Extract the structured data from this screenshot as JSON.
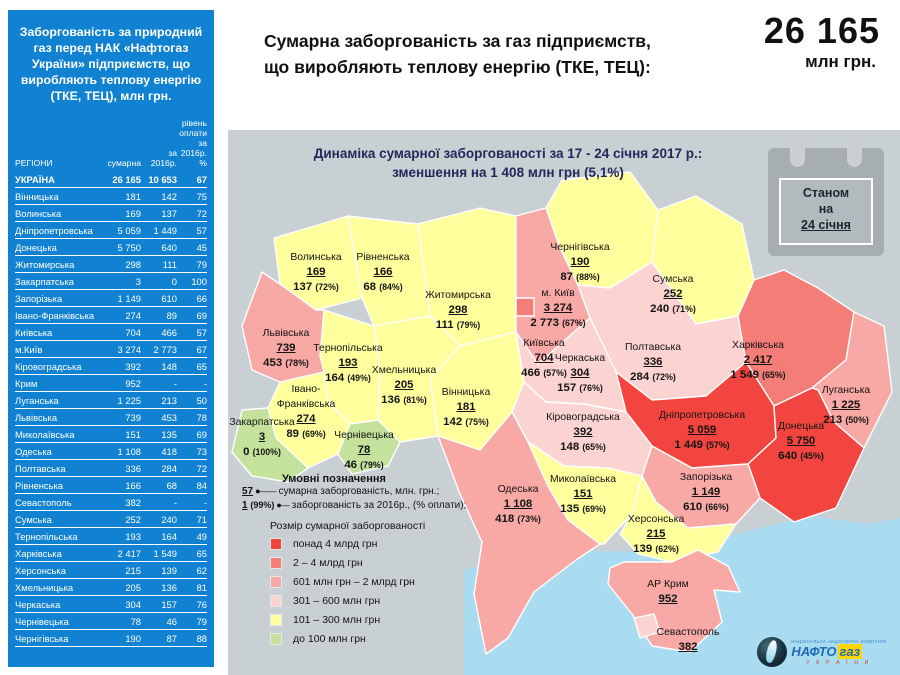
{
  "sidebar": {
    "bg": "#1182d2",
    "title": "Заборгованість за природний газ перед НАК «Нафтогаз України» підприємств, що виробляють теплову енергію (ТКЕ, ТЕЦ), млн грн.",
    "table": {
      "columns": [
        "РЕГІОНИ",
        "сумарна",
        "за 2016р.",
        "рівень оплати за 2016р. %"
      ],
      "rows": [
        [
          "УКРАЇНА",
          "26 165",
          "10 653",
          "67"
        ],
        [
          "Вінницька",
          "181",
          "142",
          "75"
        ],
        [
          "Волинська",
          "169",
          "137",
          "72"
        ],
        [
          "Дніпропетровська",
          "5 059",
          "1 449",
          "57"
        ],
        [
          "Донецька",
          "5 750",
          "640",
          "45"
        ],
        [
          "Житомирська",
          "298",
          "111",
          "79"
        ],
        [
          "Закарпатська",
          "3",
          "0",
          "100"
        ],
        [
          "Запорізька",
          "1 149",
          "610",
          "66"
        ],
        [
          "Івано-Франківська",
          "274",
          "89",
          "69"
        ],
        [
          "Київська",
          "704",
          "466",
          "57"
        ],
        [
          "м.Київ",
          "3 274",
          "2 773",
          "67"
        ],
        [
          "Кіровоградська",
          "392",
          "148",
          "65"
        ],
        [
          "Крим",
          "952",
          "-",
          "-"
        ],
        [
          "Луганська",
          "1 225",
          "213",
          "50"
        ],
        [
          "Львівська",
          "739",
          "453",
          "78"
        ],
        [
          "Миколаївська",
          "151",
          "135",
          "69"
        ],
        [
          "Одеська",
          "1 108",
          "418",
          "73"
        ],
        [
          "Полтавська",
          "336",
          "284",
          "72"
        ],
        [
          "Рівненська",
          "166",
          "68",
          "84"
        ],
        [
          "Севастополь",
          "382",
          "-",
          "-"
        ],
        [
          "Сумська",
          "252",
          "240",
          "71"
        ],
        [
          "Тернопільська",
          "193",
          "164",
          "49"
        ],
        [
          "Харківська",
          "2 417",
          "1 549",
          "65"
        ],
        [
          "Херсонська",
          "215",
          "139",
          "62"
        ],
        [
          "Хмельницька",
          "205",
          "136",
          "81"
        ],
        [
          "Черкаська",
          "304",
          "157",
          "76"
        ],
        [
          "Чернівецька",
          "78",
          "46",
          "79"
        ],
        [
          "Чернігівська",
          "190",
          "87",
          "88"
        ]
      ]
    }
  },
  "header": {
    "title_line1": "Сумарна заборгованість за газ підприємств,",
    "title_line2": "що виробляють теплову енергію (ТКЕ, ТЕЦ):",
    "total_value": "26 165",
    "total_unit": "млн грн."
  },
  "map": {
    "title_line1": "Динаміка сумарної заборгованості за 17 - 24 січня 2017 р.:",
    "title_line2": "зменшення на 1 408 млн грн (5,1%)",
    "calendar": {
      "line1": "Станом",
      "line2": "на",
      "date": "24 січня"
    },
    "land_color": "#c9d0d4",
    "sea_color": "#a9dcf1",
    "category_colors": {
      "red": "#f2453f",
      "medium": "#f57d78",
      "pink": "#f8a8a5",
      "lightpink": "#fbd3d1",
      "yellow": "#ffff9e",
      "green": "#c4e29c"
    },
    "regions": {
      "volynska": {
        "name": "Волинська",
        "total": "169",
        "y2016": "137",
        "pct": "(72%)",
        "category": "yellow"
      },
      "rivnenska": {
        "name": "Рівненська",
        "total": "166",
        "y2016": "68",
        "pct": "(84%)",
        "category": "yellow"
      },
      "zhytomyrska": {
        "name": "Житомирська",
        "total": "298",
        "y2016": "111",
        "pct": "(79%)",
        "category": "yellow"
      },
      "chernihivska": {
        "name": "Чернігівська",
        "total": "190",
        "y2016": "87",
        "pct": "(88%)",
        "category": "yellow"
      },
      "sumska": {
        "name": "Сумська",
        "total": "252",
        "y2016": "240",
        "pct": "(71%)",
        "category": "yellow"
      },
      "kyivska": {
        "name": "Київська",
        "total": "704",
        "y2016": "466",
        "pct": "(57%)",
        "category": "pink"
      },
      "kyiv_city": {
        "name": "м. Київ",
        "total": "3 274",
        "y2016": "2 773",
        "pct": "(67%)",
        "category": "medium"
      },
      "cherkaska": {
        "name": "Черкаська",
        "total": "304",
        "y2016": "157",
        "pct": "(76%)",
        "category": "lightpink"
      },
      "poltavska": {
        "name": "Полтавська",
        "total": "336",
        "y2016": "284",
        "pct": "(72%)",
        "category": "lightpink"
      },
      "kharkivska": {
        "name": "Харківська",
        "total": "2 417",
        "y2016": "1 549",
        "pct": "(65%)",
        "category": "medium"
      },
      "luhanska": {
        "name": "Луганська",
        "total": "1 225",
        "y2016": "213",
        "pct": "(50%)",
        "category": "pink"
      },
      "dnipropetrovska": {
        "name": "Дніпропетровська",
        "total": "5 059",
        "y2016": "1 449",
        "pct": "(57%)",
        "category": "red"
      },
      "donetska": {
        "name": "Донецька",
        "total": "5 750",
        "y2016": "640",
        "pct": "(45%)",
        "category": "red"
      },
      "zaporizka": {
        "name": "Запорізька",
        "total": "1 149",
        "y2016": "610",
        "pct": "(66%)",
        "category": "pink"
      },
      "kirovohradska": {
        "name": "Кіровоградська",
        "total": "392",
        "y2016": "148",
        "pct": "(65%)",
        "category": "lightpink"
      },
      "lvivska": {
        "name": "Львівська",
        "total": "739",
        "y2016": "453",
        "pct": "(78%)",
        "category": "pink"
      },
      "ternopilska": {
        "name": "Тернопільська",
        "total": "193",
        "y2016": "164",
        "pct": "(49%)",
        "category": "yellow"
      },
      "khmelnytska": {
        "name": "Хмельницька",
        "total": "205",
        "y2016": "136",
        "pct": "(81%)",
        "category": "yellow"
      },
      "vinnytska": {
        "name": "Вінницька",
        "total": "181",
        "y2016": "142",
        "pct": "(75%)",
        "category": "yellow"
      },
      "ivano_frankivska": {
        "name": "Івано-Франківська",
        "total": "274",
        "y2016": "89",
        "pct": "(69%)",
        "category": "yellow"
      },
      "zakarpatska": {
        "name": "Закарпатська",
        "total": "3",
        "y2016": "0",
        "pct": "(100%)",
        "category": "green"
      },
      "chernivetska": {
        "name": "Чернівецька",
        "total": "78",
        "y2016": "46",
        "pct": "(79%)",
        "category": "green"
      },
      "odeska": {
        "name": "Одеська",
        "total": "1 108",
        "y2016": "418",
        "pct": "(73%)",
        "category": "pink"
      },
      "mykolaivska": {
        "name": "Миколаївська",
        "total": "151",
        "y2016": "135",
        "pct": "(69%)",
        "category": "yellow"
      },
      "khersonska": {
        "name": "Херсонська",
        "total": "215",
        "y2016": "139",
        "pct": "(62%)",
        "category": "yellow"
      },
      "krym": {
        "name": "АР Крим",
        "total": "952",
        "y2016": "",
        "pct": "",
        "category": "pink"
      },
      "sevastopol": {
        "name": "Севастополь",
        "total": "382",
        "y2016": "",
        "pct": "",
        "category": "lightpink"
      }
    }
  },
  "legend": {
    "title": "Умовні позначення",
    "example1": {
      "value": "57",
      "text": "сумарна заборгованість, млн. грн.;"
    },
    "example2": {
      "value": "1",
      "pct": "(99%)",
      "text": "заборгованість за 2016р., (% оплати);"
    },
    "size_title": "Розмір сумарної заборгованості",
    "items": [
      {
        "label": "понад 4 млрд грн",
        "category": "red"
      },
      {
        "label": "2 – 4 млрд грн",
        "category": "medium"
      },
      {
        "label": "601 млн грн – 2 млрд грн",
        "category": "pink"
      },
      {
        "label": "301 – 600 млн грн",
        "category": "lightpink"
      },
      {
        "label": "101 – 300 млн грн",
        "category": "yellow"
      },
      {
        "label": "до 100 млн грн",
        "category": "green"
      }
    ]
  },
  "logo": {
    "tagline": "НАЦІОНАЛЬНА АКЦІОНЕРНА КОМПАНІЯ",
    "name1": "НАФТО",
    "name2": "газ",
    "country": "У К Р А Ї Н И"
  }
}
